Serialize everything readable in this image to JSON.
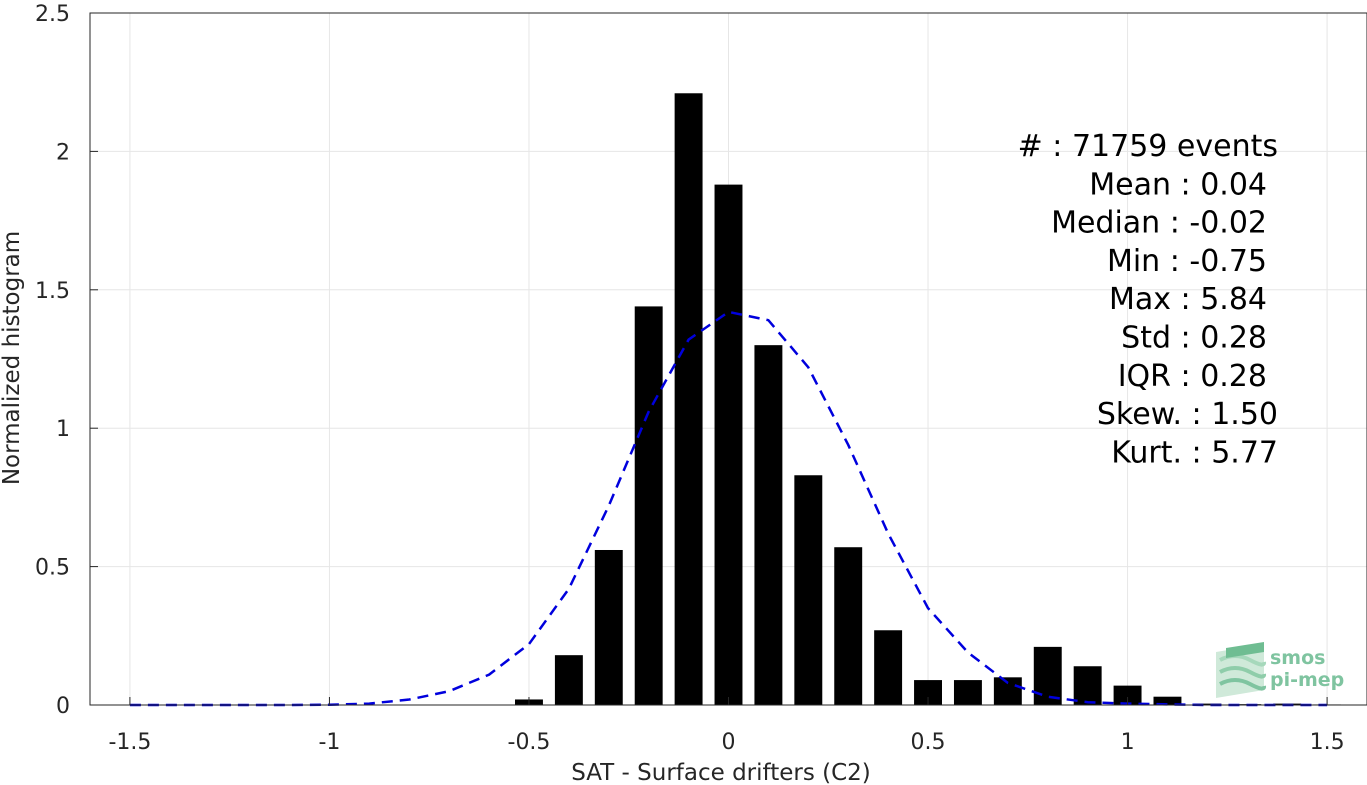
{
  "chart_data": {
    "type": "bar",
    "xlabel": "SAT - Surface drifters (C2)",
    "ylabel": "Normalized histogram",
    "xlim": [
      -1.6,
      1.6
    ],
    "ylim": [
      0,
      2.5
    ],
    "xticks": [
      -1.5,
      -1,
      -0.5,
      0,
      0.5,
      1,
      1.5
    ],
    "xtick_labels": [
      "-1.5",
      "-1",
      "-0.5",
      "0",
      "0.5",
      "1",
      "1.5"
    ],
    "yticks": [
      0,
      0.5,
      1,
      1.5,
      2,
      2.5
    ],
    "ytick_labels": [
      "0",
      "0.5",
      "1",
      "1.5",
      "2",
      "2.5"
    ],
    "grid": true,
    "bar_color": "#000000",
    "bars": {
      "x": [
        -0.5,
        -0.4,
        -0.3,
        -0.2,
        -0.1,
        0.0,
        0.1,
        0.2,
        0.3,
        0.4,
        0.5,
        0.6,
        0.7,
        0.8,
        0.9,
        1.0,
        1.1,
        1.2,
        1.3,
        1.4,
        1.5
      ],
      "values": [
        0.02,
        0.18,
        0.56,
        1.44,
        2.21,
        1.88,
        1.3,
        0.83,
        0.57,
        0.27,
        0.09,
        0.09,
        0.1,
        0.21,
        0.14,
        0.07,
        0.03,
        0.005,
        0.003,
        0.005,
        0.002
      ]
    },
    "fit_curve": {
      "style": "dashed",
      "color": "#0000dd",
      "x": [
        -1.5,
        -1.4,
        -1.3,
        -1.2,
        -1.1,
        -1.0,
        -0.9,
        -0.8,
        -0.7,
        -0.6,
        -0.5,
        -0.4,
        -0.3,
        -0.2,
        -0.1,
        0.0,
        0.1,
        0.2,
        0.3,
        0.4,
        0.5,
        0.6,
        0.7,
        0.8,
        0.9,
        1.0,
        1.1,
        1.2,
        1.3,
        1.4,
        1.5
      ],
      "y": [
        0.0,
        0.0,
        0.0,
        0.0,
        0.0,
        0.001,
        0.005,
        0.02,
        0.05,
        0.11,
        0.22,
        0.42,
        0.72,
        1.06,
        1.32,
        1.42,
        1.39,
        1.22,
        0.94,
        0.62,
        0.35,
        0.19,
        0.08,
        0.03,
        0.01,
        0.005,
        0.002,
        0.0,
        0.0,
        0.0,
        0.0
      ]
    },
    "annotations": [
      "#  : 71759 events",
      "Mean : 0.04",
      "Median : -0.02",
      "Min : -0.75",
      "Max : 5.84",
      "Std : 0.28",
      "IQR : 0.28",
      "Skew. : 1.50",
      "Kurt. : 5.77"
    ]
  },
  "logo": {
    "line1": "smos",
    "line2": "pi-mep",
    "color": "#7fc4a0"
  }
}
